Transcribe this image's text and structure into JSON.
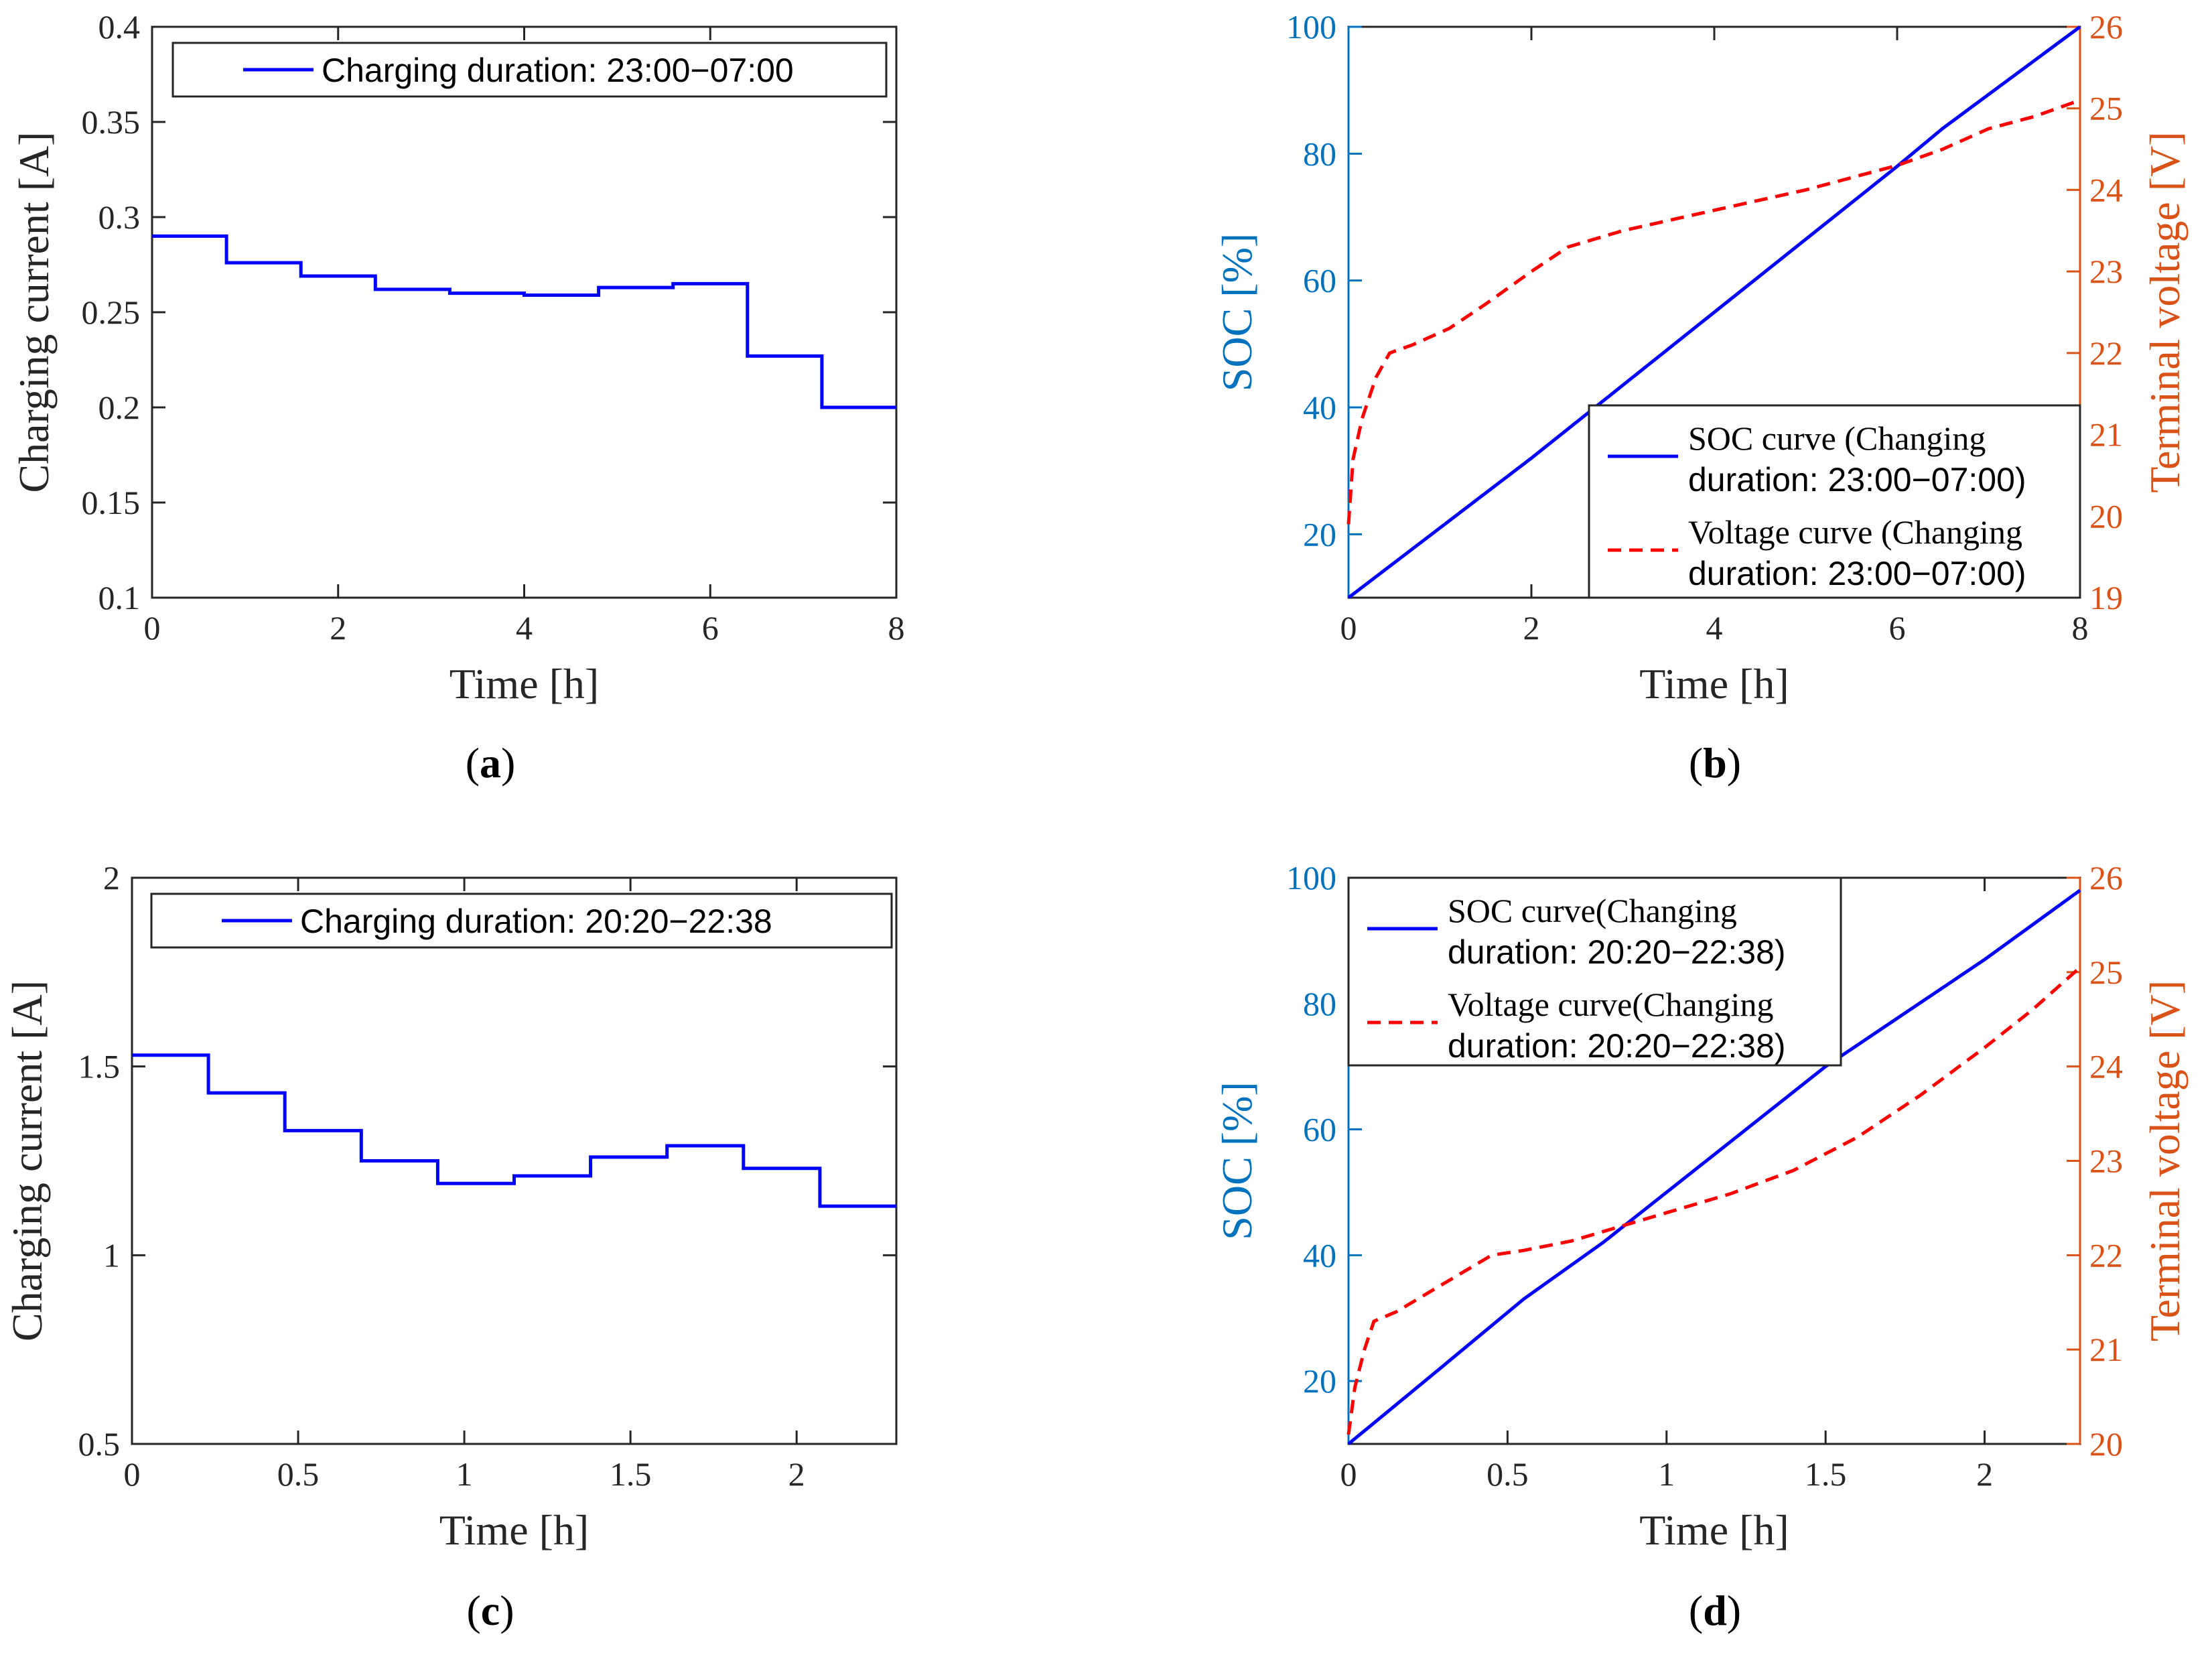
{
  "colors": {
    "axis": "#262626",
    "blue": "#0000FF",
    "red": "#FF0000",
    "left_axis_blue": "#0072BD",
    "right_axis_orange": "#D95319"
  },
  "chart_data": [
    {
      "id": "a",
      "type": "line",
      "step": true,
      "caption_letter": "a",
      "xlabel": "Time [h]",
      "ylabel": "Charging current [A]",
      "xlim": [
        0,
        8
      ],
      "ylim": [
        0.1,
        0.4
      ],
      "xticks": [
        0,
        2,
        4,
        6,
        8
      ],
      "xtick_labels": [
        "0",
        "2",
        "4",
        "6",
        "8"
      ],
      "yticks": [
        0.1,
        0.15,
        0.2,
        0.25,
        0.3,
        0.35,
        0.4
      ],
      "ytick_labels": [
        "0.1",
        "0.15",
        "0.2",
        "0.25",
        "0.3",
        "0.35",
        "0.4"
      ],
      "legend": {
        "position": "top",
        "label": "Charging duration: 23:00−07:00"
      },
      "series": [
        {
          "name": "Charging duration: 23:00−07:00",
          "style": "solid",
          "color": "#0000FF",
          "x": [
            0,
            0.8,
            1.6,
            2.4,
            3.2,
            4.0,
            4.8,
            5.6,
            6.4,
            7.2,
            8.0
          ],
          "y": [
            0.29,
            0.276,
            0.269,
            0.262,
            0.26,
            0.259,
            0.263,
            0.265,
            0.227,
            0.2,
            0.2
          ]
        }
      ]
    },
    {
      "id": "b",
      "type": "line",
      "dual_axis": true,
      "caption_letter": "b",
      "xlabel": "Time [h]",
      "ylabel_left": "SOC [%]",
      "ylabel_right": "Terminal voltage [V]",
      "xlim": [
        0,
        8
      ],
      "ylim_left": [
        10,
        100
      ],
      "ylim_right": [
        19,
        26
      ],
      "xticks": [
        0,
        2,
        4,
        6,
        8
      ],
      "xtick_labels": [
        "0",
        "2",
        "4",
        "6",
        "8"
      ],
      "yticks_left": [
        20,
        40,
        60,
        80,
        100
      ],
      "ytick_labels_left": [
        "20",
        "40",
        "60",
        "80",
        "100"
      ],
      "yticks_right": [
        19,
        20,
        21,
        22,
        23,
        24,
        25,
        26
      ],
      "ytick_labels_right": [
        "19",
        "20",
        "21",
        "22",
        "23",
        "24",
        "25",
        "26"
      ],
      "legend": {
        "position": "bottom-right",
        "entries": [
          {
            "line1": "SOC curve (Changing",
            "line2": "duration: 23:00−07:00)"
          },
          {
            "line1": "Voltage curve (Changing",
            "line2": "duration: 23:00−07:00)"
          }
        ]
      },
      "series": [
        {
          "name": "SOC curve",
          "axis": "left",
          "style": "solid",
          "color": "#0000FF",
          "x": [
            0,
            2,
            4,
            6,
            6.5,
            8
          ],
          "y": [
            10,
            32,
            55,
            78,
            84,
            100
          ]
        },
        {
          "name": "Voltage curve",
          "axis": "right",
          "style": "dashed",
          "color": "#FF0000",
          "x": [
            0,
            0.05,
            0.15,
            0.3,
            0.45,
            0.7,
            1.1,
            1.5,
            2.0,
            2.4,
            3.0,
            4.0,
            5.0,
            6.0,
            6.5,
            7.0,
            7.5,
            8.0
          ],
          "y": [
            19.9,
            20.7,
            21.2,
            21.7,
            22.0,
            22.1,
            22.3,
            22.6,
            23.0,
            23.3,
            23.5,
            23.75,
            24.0,
            24.3,
            24.5,
            24.75,
            24.9,
            25.1
          ]
        }
      ]
    },
    {
      "id": "c",
      "type": "line",
      "step": true,
      "caption_letter": "c",
      "xlabel": "Time [h]",
      "ylabel": "Charging current [A]",
      "xlim": [
        0,
        2.3
      ],
      "ylim": [
        0.5,
        2
      ],
      "xticks": [
        0,
        0.5,
        1,
        1.5,
        2
      ],
      "xtick_labels": [
        "0",
        "0.5",
        "1",
        "1.5",
        "2"
      ],
      "yticks": [
        0.5,
        1,
        1.5,
        2
      ],
      "ytick_labels": [
        "0.5",
        "1",
        "1.5",
        "2"
      ],
      "legend": {
        "position": "top",
        "label": "Charging duration: 20:20−22:38"
      },
      "series": [
        {
          "name": "Charging duration: 20:20−22:38",
          "style": "solid",
          "color": "#0000FF",
          "x": [
            0,
            0.23,
            0.46,
            0.69,
            0.92,
            1.15,
            1.38,
            1.61,
            1.84,
            2.07,
            2.3
          ],
          "y": [
            1.53,
            1.43,
            1.33,
            1.25,
            1.19,
            1.21,
            1.26,
            1.29,
            1.23,
            1.13,
            1.13
          ]
        }
      ]
    },
    {
      "id": "d",
      "type": "line",
      "dual_axis": true,
      "caption_letter": "d",
      "xlabel": "Time [h]",
      "ylabel_left": "SOC [%]",
      "ylabel_right": "Terminal voltage [V]",
      "xlim": [
        0,
        2.3
      ],
      "ylim_left": [
        10,
        100
      ],
      "ylim_right": [
        20,
        26
      ],
      "xticks": [
        0,
        0.5,
        1,
        1.5,
        2
      ],
      "xtick_labels": [
        "0",
        "0.5",
        "1",
        "1.5",
        "2"
      ],
      "yticks_left": [
        20,
        40,
        60,
        80,
        100
      ],
      "ytick_labels_left": [
        "20",
        "40",
        "60",
        "80",
        "100"
      ],
      "yticks_right": [
        20,
        21,
        22,
        23,
        24,
        25,
        26
      ],
      "ytick_labels_right": [
        "20",
        "21",
        "22",
        "23",
        "24",
        "25",
        "26"
      ],
      "legend": {
        "position": "top-left",
        "entries": [
          {
            "line1": "SOC curve(Changing",
            "line2": "duration: 20:20−22:38)"
          },
          {
            "line1": "Voltage curve(Changing",
            "line2": "duration: 20:20−22:38)"
          }
        ]
      },
      "series": [
        {
          "name": "SOC curve",
          "axis": "left",
          "style": "solid",
          "color": "#0000FF",
          "x": [
            0,
            0.3,
            0.55,
            0.8,
            1.0,
            1.5,
            2.0,
            2.15,
            2.3
          ],
          "y": [
            10,
            22.5,
            33,
            42,
            50,
            70,
            87,
            92.5,
            98
          ]
        },
        {
          "name": "Voltage curve",
          "axis": "right",
          "style": "dashed",
          "color": "#FF0000",
          "x": [
            0,
            0.02,
            0.05,
            0.08,
            0.15,
            0.3,
            0.45,
            0.55,
            0.7,
            0.85,
            1.0,
            1.2,
            1.4,
            1.6,
            1.8,
            2.0,
            2.15,
            2.3
          ],
          "y": [
            20.1,
            20.6,
            21.0,
            21.3,
            21.4,
            21.7,
            22.0,
            22.05,
            22.15,
            22.3,
            22.45,
            22.65,
            22.9,
            23.25,
            23.7,
            24.2,
            24.6,
            25.05
          ]
        }
      ]
    }
  ]
}
